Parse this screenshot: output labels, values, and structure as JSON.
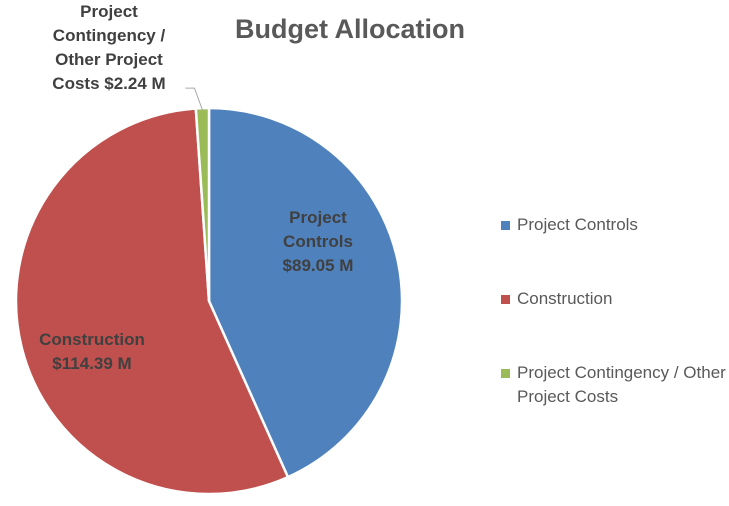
{
  "chart_data": {
    "type": "pie",
    "title": "Budget Allocation",
    "categories": [
      "Project Controls",
      "Construction",
      "Project Contingency / Other Project Costs"
    ],
    "values": [
      89.05,
      114.39,
      2.24
    ],
    "value_labels": [
      "$89.05 M",
      "$114.39 M",
      "$2.24 M"
    ],
    "colors": [
      "#4f81bd",
      "#c0504d",
      "#9bbb59"
    ],
    "legend": "right"
  }
}
